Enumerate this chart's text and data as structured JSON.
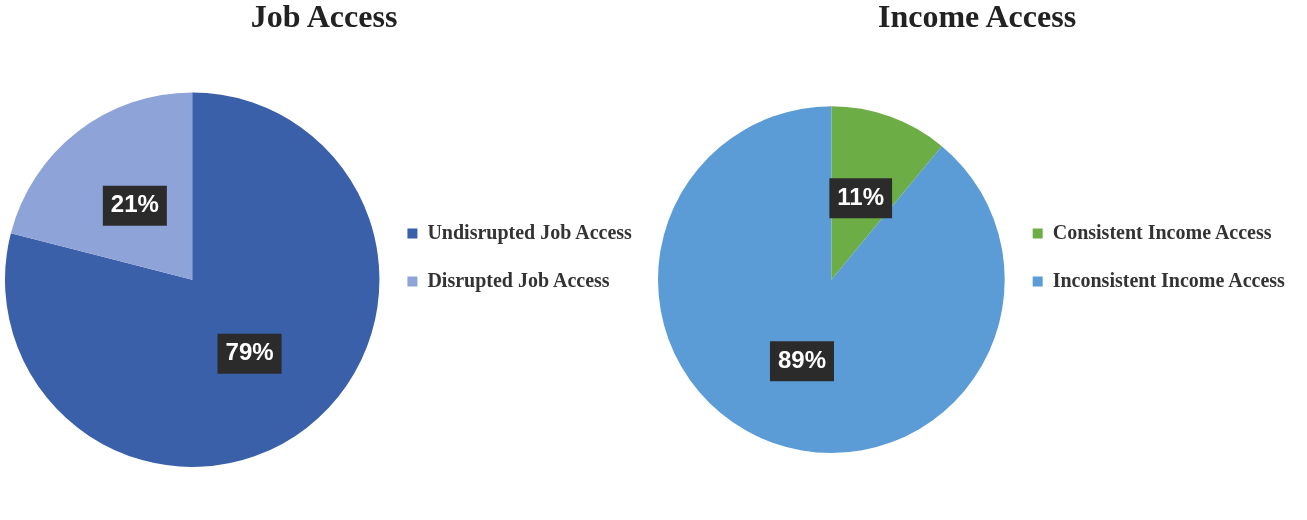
{
  "chart_data": [
    {
      "type": "pie",
      "title": "Job Access",
      "categories": [
        "Undisrupted Job Access",
        "Disrupted Job Access"
      ],
      "values": [
        79,
        21
      ],
      "colors": [
        "#3a60aa",
        "#8ea3d7"
      ],
      "value_labels": [
        "79%",
        "21%"
      ],
      "legend": "right"
    },
    {
      "type": "pie",
      "title": "Income Access",
      "categories": [
        "Consistent Income Access",
        "Inconsistent Income Access"
      ],
      "values": [
        11,
        89
      ],
      "colors": [
        "#6cad45",
        "#5b9bd6"
      ],
      "value_labels": [
        "11%",
        "89%"
      ],
      "legend": "right"
    }
  ]
}
